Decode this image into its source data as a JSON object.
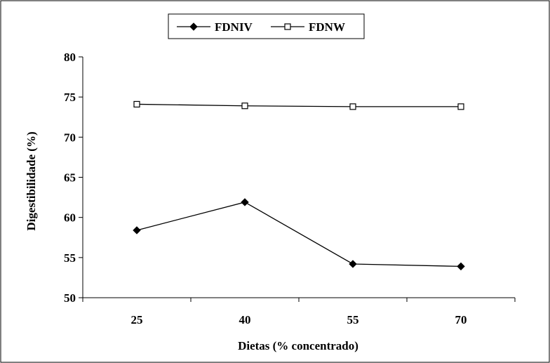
{
  "chart_data": {
    "type": "line",
    "title": "",
    "xlabel": "Dietas (% concentrado)",
    "ylabel": "Digestibilidade (%)",
    "categories": [
      "25",
      "40",
      "55",
      "70"
    ],
    "ylim": [
      50,
      80
    ],
    "yticks": [
      50,
      55,
      60,
      65,
      70,
      75,
      80
    ],
    "grid": false,
    "legend_position": "top",
    "series": [
      {
        "name": "FDNIV",
        "marker": "filled-diamond",
        "color": "#000000",
        "values": [
          58.4,
          61.9,
          54.2,
          53.9
        ]
      },
      {
        "name": "FDNW",
        "marker": "open-square",
        "color": "#000000",
        "values": [
          74.1,
          73.9,
          73.8,
          73.8
        ]
      }
    ]
  }
}
